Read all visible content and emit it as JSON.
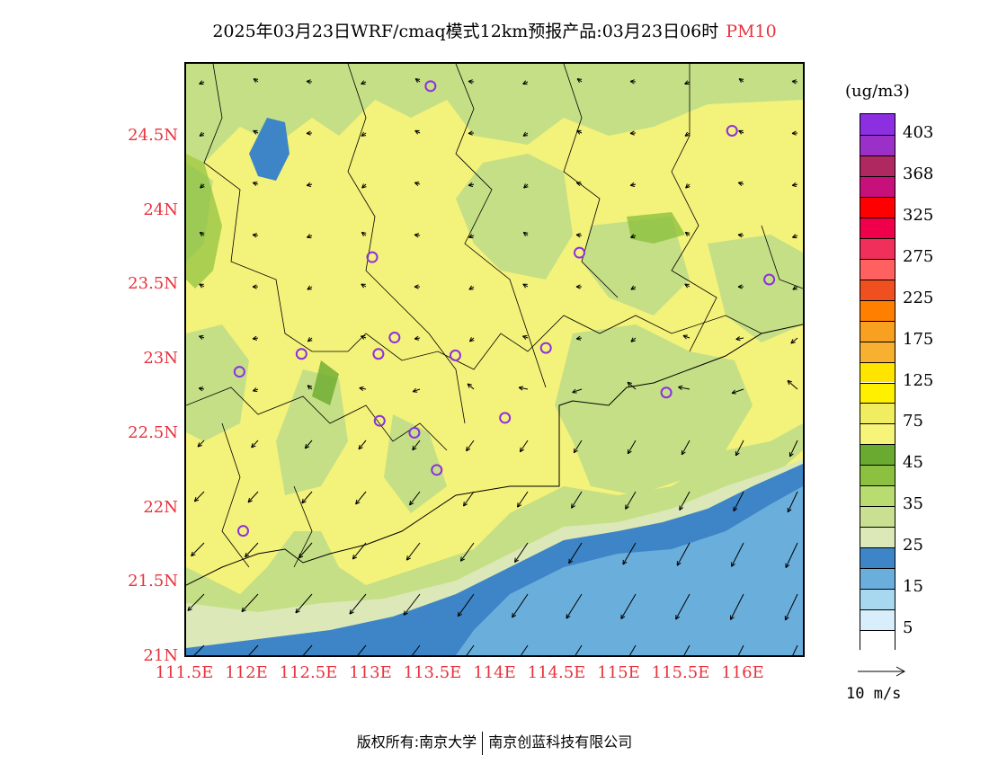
{
  "title": {
    "main": "2025年03月23日WRF/cmaq模式12km预报产品:03月23日06时",
    "species": "PM10"
  },
  "axes": {
    "lat_labels": [
      "24.5N",
      "24N",
      "23.5N",
      "23N",
      "22.5N",
      "22N",
      "21.5N",
      "21N"
    ],
    "lon_labels": [
      "111.5E",
      "112E",
      "112.5E",
      "113E",
      "113.5E",
      "114E",
      "114.5E",
      "115E",
      "115.5E",
      "116E"
    ],
    "lat_range": [
      21,
      25
    ],
    "lon_range": [
      111.5,
      116.5
    ]
  },
  "colorbar": {
    "unit": "(ug/m3)",
    "labels": [
      "403",
      "368",
      "325",
      "275",
      "225",
      "175",
      "125",
      "75",
      "45",
      "35",
      "25",
      "15",
      "5"
    ],
    "colors": [
      "#8c2fe0",
      "#9b30c8",
      "#b02860",
      "#c8107a",
      "#ff0000",
      "#f0004a",
      "#f0305a",
      "#ff6060",
      "#f05020",
      "#ff7f00",
      "#f8a020",
      "#f8b030",
      "#ffe400",
      "#fff000",
      "#f0ee60",
      "#f6f57a",
      "#6aaa30",
      "#8cc040",
      "#b8dc70",
      "#c8e090",
      "#dce8b8",
      "#3d85c6",
      "#6aaedc",
      "#a8d8f0",
      "#d8eefa",
      "#ffffff"
    ]
  },
  "wind_reference": {
    "label": "10 m/s"
  },
  "monitoring_sites": [
    {
      "lon": 113.47,
      "lat": 24.85
    },
    {
      "lon": 115.9,
      "lat": 24.55
    },
    {
      "lon": 113.0,
      "lat": 23.7
    },
    {
      "lon": 114.67,
      "lat": 23.73
    },
    {
      "lon": 116.2,
      "lat": 23.55
    },
    {
      "lon": 112.43,
      "lat": 23.05
    },
    {
      "lon": 113.05,
      "lat": 23.05
    },
    {
      "lon": 113.18,
      "lat": 23.16
    },
    {
      "lon": 113.67,
      "lat": 23.04
    },
    {
      "lon": 114.4,
      "lat": 23.09
    },
    {
      "lon": 111.93,
      "lat": 22.93
    },
    {
      "lon": 115.37,
      "lat": 22.79
    },
    {
      "lon": 113.06,
      "lat": 22.6
    },
    {
      "lon": 113.34,
      "lat": 22.52
    },
    {
      "lon": 114.07,
      "lat": 22.62
    },
    {
      "lon": 113.52,
      "lat": 22.27
    },
    {
      "lon": 111.96,
      "lat": 21.86
    }
  ],
  "footer": {
    "copyright": "版权所有:南京大学",
    "company": "南京创蓝科技有限公司"
  }
}
